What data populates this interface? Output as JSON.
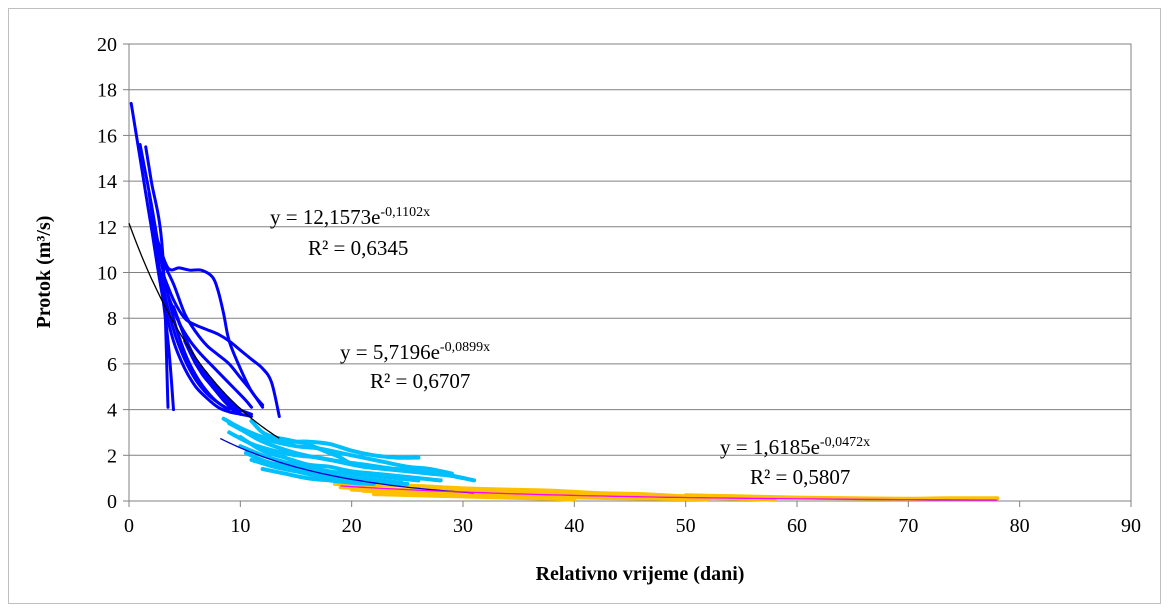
{
  "chart_data": {
    "type": "scatter",
    "xlabel": "Relativno vrijeme (dani)",
    "ylabel": "Protok (m³/s)",
    "xlim": [
      0,
      90
    ],
    "ylim": [
      0,
      20
    ],
    "xticks": [
      "0",
      "10",
      "20",
      "30",
      "40",
      "50",
      "60",
      "70",
      "80",
      "90"
    ],
    "yticks": [
      "0",
      "2",
      "4",
      "6",
      "8",
      "10",
      "12",
      "14",
      "16",
      "18",
      "20"
    ],
    "grid": "horizontal",
    "legend": "none",
    "series": [
      {
        "color": "#0000ff",
        "x_range": [
          0,
          14
        ],
        "y_range": [
          3.5,
          17.4
        ],
        "curves": [
          [
            [
              0.2,
              17.4
            ],
            [
              1,
              15
            ],
            [
              2,
              12
            ],
            [
              3,
              9.5
            ],
            [
              4,
              7.5
            ],
            [
              5,
              6.2
            ],
            [
              6,
              5.3
            ],
            [
              7,
              4.7
            ],
            [
              8,
              4.3
            ],
            [
              9,
              4.0
            ]
          ],
          [
            [
              1,
              15.6
            ],
            [
              2,
              13
            ],
            [
              3,
              10.2
            ],
            [
              4,
              8
            ],
            [
              5,
              6.5
            ],
            [
              6,
              5.5
            ],
            [
              7,
              4.8
            ],
            [
              8,
              4.3
            ],
            [
              9,
              4.0
            ]
          ],
          [
            [
              1.5,
              15.5
            ],
            [
              2,
              14
            ],
            [
              3,
              11
            ],
            [
              3.5,
              4.1
            ]
          ],
          [
            [
              1.8,
              13.5
            ],
            [
              2.5,
              11
            ],
            [
              3.5,
              7
            ],
            [
              4,
              4.0
            ]
          ],
          [
            [
              2,
              12
            ],
            [
              3,
              9
            ],
            [
              4,
              7
            ],
            [
              5,
              5.8
            ],
            [
              6,
              5
            ],
            [
              7,
              4.5
            ],
            [
              8,
              4.1
            ],
            [
              9,
              3.9
            ],
            [
              10,
              3.8
            ],
            [
              11,
              3.7
            ]
          ],
          [
            [
              2.5,
              11.5
            ],
            [
              3.5,
              10.2
            ],
            [
              4.5,
              10.2
            ],
            [
              5.5,
              10.1
            ],
            [
              6.5,
              10.1
            ],
            [
              7.5,
              9.8
            ],
            [
              8,
              9.2
            ],
            [
              8.5,
              8.2
            ],
            [
              9,
              7
            ],
            [
              10,
              5.8
            ],
            [
              11,
              4.8
            ],
            [
              12,
              4.2
            ]
          ],
          [
            [
              3,
              10.5
            ],
            [
              4,
              9.5
            ],
            [
              5,
              8.2
            ],
            [
              6,
              7.4
            ],
            [
              7,
              6.8
            ],
            [
              8,
              6.4
            ],
            [
              9,
              6
            ],
            [
              10,
              5.4
            ],
            [
              11,
              4.8
            ],
            [
              12,
              4.1
            ]
          ],
          [
            [
              3,
              10
            ],
            [
              4,
              8.8
            ],
            [
              5,
              8
            ],
            [
              6,
              7.7
            ],
            [
              7,
              7.5
            ],
            [
              8,
              7.3
            ],
            [
              9,
              7
            ],
            [
              10,
              6.6
            ],
            [
              11,
              6.2
            ],
            [
              12,
              5.8
            ],
            [
              12.8,
              5.2
            ],
            [
              13.5,
              3.7
            ]
          ],
          [
            [
              3.5,
              9
            ],
            [
              4.5,
              7.8
            ],
            [
              5.5,
              7
            ],
            [
              6.5,
              6.4
            ],
            [
              7.5,
              5.9
            ],
            [
              8.5,
              5.4
            ],
            [
              9.5,
              4.9
            ],
            [
              10.5,
              4.4
            ],
            [
              11,
              4.1
            ]
          ],
          [
            [
              4,
              8.5
            ],
            [
              5,
              7.2
            ],
            [
              6,
              6.2
            ],
            [
              7,
              5.5
            ],
            [
              8,
              4.9
            ],
            [
              9,
              4.4
            ],
            [
              10,
              4.0
            ],
            [
              11,
              3.8
            ]
          ],
          [
            [
              4.5,
              7.8
            ],
            [
              5.5,
              6.6
            ],
            [
              6.5,
              5.8
            ],
            [
              7.5,
              5.2
            ],
            [
              8.5,
              4.6
            ],
            [
              9.5,
              4.2
            ],
            [
              10,
              4.0
            ]
          ],
          [
            [
              5,
              7
            ],
            [
              6,
              6
            ],
            [
              7,
              5.3
            ],
            [
              8,
              4.8
            ],
            [
              9,
              4.3
            ],
            [
              10,
              3.9
            ]
          ],
          [
            [
              5.5,
              6.5
            ],
            [
              6.5,
              5.6
            ],
            [
              7.5,
              5
            ],
            [
              8.5,
              4.4
            ],
            [
              9.5,
              3.9
            ]
          ],
          [
            [
              6,
              6.0
            ],
            [
              7,
              5.3
            ],
            [
              8,
              4.7
            ],
            [
              9,
              4.2
            ],
            [
              10,
              3.8
            ]
          ]
        ]
      },
      {
        "color": "#00bfff",
        "x_range": [
          8,
          31
        ],
        "y_range": [
          0.7,
          3.6
        ],
        "curves": [
          [
            [
              8.5,
              3.6
            ],
            [
              10,
              3.2
            ],
            [
              12,
              2.8
            ],
            [
              14,
              2.6
            ],
            [
              16,
              2.6
            ],
            [
              18,
              2.5
            ],
            [
              20,
              2.2
            ],
            [
              22,
              2.0
            ],
            [
              24,
              1.9
            ],
            [
              26,
              1.9
            ]
          ],
          [
            [
              9,
              3.4
            ],
            [
              11,
              2.9
            ],
            [
              13,
              2.6
            ],
            [
              15,
              2.4
            ],
            [
              17,
              2.3
            ],
            [
              19,
              2.1
            ],
            [
              21,
              1.9
            ],
            [
              23,
              1.7
            ],
            [
              25,
              1.5
            ],
            [
              27,
              1.4
            ],
            [
              29,
              1.2
            ]
          ],
          [
            [
              9,
              3.0
            ],
            [
              11,
              2.5
            ],
            [
              13,
              2.2
            ],
            [
              15,
              2.0
            ],
            [
              17,
              1.9
            ],
            [
              19,
              1.7
            ],
            [
              21,
              1.5
            ],
            [
              23,
              1.4
            ],
            [
              25,
              1.3
            ],
            [
              27,
              1.2
            ],
            [
              29,
              1.1
            ],
            [
              31,
              0.9
            ]
          ],
          [
            [
              9.5,
              3.3
            ],
            [
              12,
              2.6
            ],
            [
              15,
              2.1
            ],
            [
              18,
              1.8
            ],
            [
              21,
              1.6
            ],
            [
              24,
              1.4
            ],
            [
              27,
              1.3
            ],
            [
              30,
              1.0
            ]
          ],
          [
            [
              10,
              2.8
            ],
            [
              12,
              2.2
            ],
            [
              14,
              1.9
            ],
            [
              16,
              1.6
            ],
            [
              18,
              1.5
            ],
            [
              20,
              1.3
            ],
            [
              22,
              1.2
            ],
            [
              24,
              1.1
            ],
            [
              26,
              1.0
            ],
            [
              28,
              0.9
            ]
          ],
          [
            [
              10,
              2.4
            ],
            [
              12,
              2.0
            ],
            [
              14,
              1.7
            ],
            [
              16,
              1.5
            ],
            [
              18,
              1.3
            ],
            [
              20,
              1.2
            ],
            [
              22,
              1.1
            ],
            [
              24,
              1.0
            ],
            [
              26,
              0.9
            ]
          ],
          [
            [
              10.5,
              2.1
            ],
            [
              12.5,
              1.7
            ],
            [
              14.5,
              1.5
            ],
            [
              16.5,
              1.3
            ],
            [
              18.5,
              1.1
            ],
            [
              20.5,
              1.0
            ],
            [
              22.5,
              0.9
            ],
            [
              24.5,
              0.8
            ]
          ],
          [
            [
              11,
              1.8
            ],
            [
              13,
              1.5
            ],
            [
              15,
              1.3
            ],
            [
              17,
              1.1
            ],
            [
              19,
              1.0
            ],
            [
              21,
              0.9
            ],
            [
              23,
              0.8
            ],
            [
              25,
              0.75
            ]
          ],
          [
            [
              11,
              3.5
            ],
            [
              12,
              3.0
            ],
            [
              13,
              2.8
            ],
            [
              14,
              2.7
            ],
            [
              15,
              2.6
            ],
            [
              16,
              2.5
            ],
            [
              17,
              2.3
            ],
            [
              18,
              2.1
            ],
            [
              19,
              1.9
            ],
            [
              20,
              1.6
            ]
          ],
          [
            [
              12,
              1.4
            ],
            [
              14,
              1.2
            ],
            [
              16,
              1.0
            ],
            [
              18,
              0.9
            ],
            [
              20,
              0.8
            ],
            [
              22,
              0.75
            ]
          ]
        ]
      },
      {
        "color": "#ffc000",
        "x_range": [
          18,
          78
        ],
        "y_range": [
          0.0,
          0.8
        ],
        "curves": [
          [
            [
              18.5,
              0.75
            ],
            [
              22,
              0.7
            ],
            [
              26,
              0.65
            ],
            [
              30,
              0.55
            ],
            [
              34,
              0.5
            ],
            [
              38,
              0.45
            ],
            [
              42,
              0.35
            ],
            [
              46,
              0.3
            ],
            [
              50,
              0.2
            ]
          ],
          [
            [
              19,
              0.6
            ],
            [
              23,
              0.5
            ],
            [
              27,
              0.45
            ],
            [
              31,
              0.4
            ],
            [
              35,
              0.35
            ],
            [
              39,
              0.3
            ],
            [
              43,
              0.25
            ],
            [
              47,
              0.2
            ],
            [
              51,
              0.15
            ],
            [
              55,
              0.1
            ],
            [
              58,
              0.05
            ]
          ],
          [
            [
              20,
              0.5
            ],
            [
              24,
              0.4
            ],
            [
              28,
              0.35
            ],
            [
              32,
              0.3
            ],
            [
              36,
              0.25
            ],
            [
              40,
              0.2
            ],
            [
              44,
              0.15
            ],
            [
              48,
              0.1
            ],
            [
              52,
              0.08
            ]
          ],
          [
            [
              21,
              0.45
            ],
            [
              25,
              0.35
            ],
            [
              29,
              0.3
            ],
            [
              33,
              0.25
            ],
            [
              37,
              0.2
            ],
            [
              41,
              0.15
            ],
            [
              45,
              0.12
            ],
            [
              49,
              0.1
            ]
          ],
          [
            [
              22,
              0.3
            ],
            [
              26,
              0.25
            ],
            [
              30,
              0.2
            ],
            [
              34,
              0.15
            ],
            [
              38,
              0.1
            ],
            [
              40,
              0.05
            ]
          ],
          [
            [
              24,
              0.7
            ],
            [
              28,
              0.6
            ],
            [
              32,
              0.5
            ],
            [
              36,
              0.45
            ],
            [
              40,
              0.4
            ]
          ],
          [
            [
              50,
              0.25
            ],
            [
              55,
              0.2
            ],
            [
              60,
              0.15
            ],
            [
              65,
              0.12
            ],
            [
              70,
              0.1
            ],
            [
              74,
              0.12
            ],
            [
              78,
              0.12
            ]
          ]
        ]
      }
    ],
    "trendlines": [
      {
        "color": "#000000",
        "equation": "y = 12,1573e^(-0,1102x)",
        "a": 12.1573,
        "b": -0.1102,
        "x_range": [
          0,
          13.5
        ]
      },
      {
        "color": "#0000cd",
        "equation": "y = 5,7196e^(-0,0899x)",
        "a": 5.7196,
        "b": -0.0899,
        "x_range": [
          8.2,
          31
        ]
      },
      {
        "color": "#ff00ff",
        "equation": "y = 1,6185e^(-0,0472x)",
        "a": 1.6185,
        "b": -0.0472,
        "x_range": [
          19,
          78
        ]
      }
    ],
    "annotations": [
      {
        "base": "y = 12,1573e",
        "sup": "-0,1102x",
        "r2": "R² = 0,6345"
      },
      {
        "base": "y = 5,7196e",
        "sup": "-0,0899x",
        "r2": "R² = 0,6707"
      },
      {
        "base": "y = 1,6185e",
        "sup": "-0,0472x",
        "r2": "R² = 0,5807"
      }
    ]
  }
}
